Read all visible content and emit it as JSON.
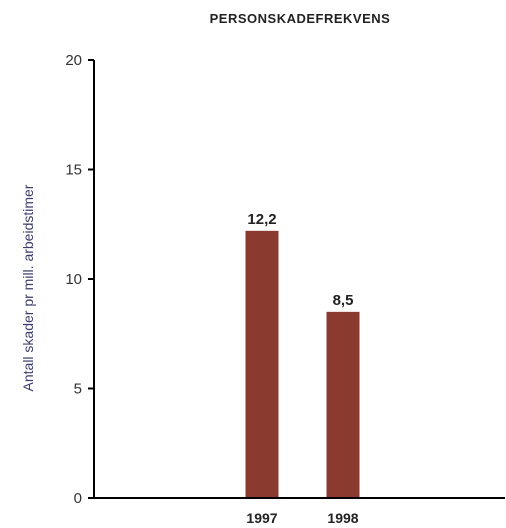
{
  "chart_data": {
    "type": "bar",
    "title": "PERSONSKADEFREKVENS",
    "ylabel": "Antall skader pr mill. arbeidstimer",
    "xlabel": "",
    "categories": [
      "1997",
      "1998"
    ],
    "values": [
      12.2,
      8.5
    ],
    "value_labels": [
      "12,2",
      "8,5"
    ],
    "ylim": [
      0,
      20
    ],
    "yticks": [
      0,
      5,
      10,
      15,
      20
    ],
    "ytick_labels": [
      "0",
      "5",
      "10",
      "15",
      "20"
    ],
    "grid": false,
    "legend": "none",
    "colors": {
      "bar": "#8b3a2f",
      "axis": "#000000",
      "ylabel": "#3a3e6a"
    }
  }
}
